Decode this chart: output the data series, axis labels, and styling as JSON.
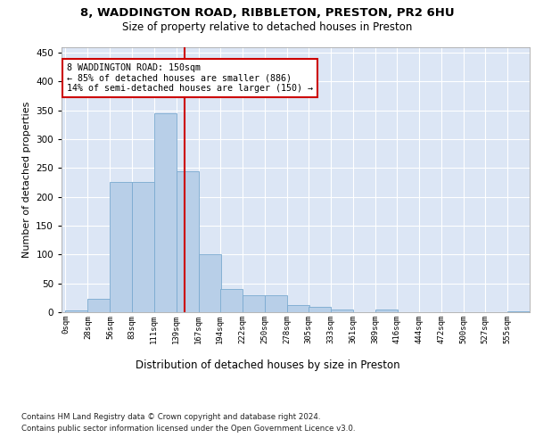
{
  "title1": "8, WADDINGTON ROAD, RIBBLETON, PRESTON, PR2 6HU",
  "title2": "Size of property relative to detached houses in Preston",
  "xlabel": "Distribution of detached houses by size in Preston",
  "ylabel": "Number of detached properties",
  "footnote1": "Contains HM Land Registry data © Crown copyright and database right 2024.",
  "footnote2": "Contains public sector information licensed under the Open Government Licence v3.0.",
  "annotation_line1": "8 WADDINGTON ROAD: 150sqm",
  "annotation_line2": "← 85% of detached houses are smaller (886)",
  "annotation_line3": "14% of semi-detached houses are larger (150) →",
  "bar_color": "#b8cfe8",
  "bar_edge_color": "#7aaad0",
  "ref_line_color": "#cc0000",
  "ref_line_x": 150,
  "annotation_box_color": "#cc0000",
  "categories": [
    0,
    28,
    56,
    83,
    111,
    139,
    167,
    194,
    222,
    250,
    278,
    305,
    333,
    361,
    389,
    416,
    444,
    472,
    500,
    527,
    555
  ],
  "cat_labels": [
    "0sqm",
    "28sqm",
    "56sqm",
    "83sqm",
    "111sqm",
    "139sqm",
    "167sqm",
    "194sqm",
    "222sqm",
    "250sqm",
    "278sqm",
    "305sqm",
    "333sqm",
    "361sqm",
    "389sqm",
    "416sqm",
    "444sqm",
    "472sqm",
    "500sqm",
    "527sqm",
    "555sqm"
  ],
  "values": [
    3,
    23,
    225,
    225,
    345,
    245,
    100,
    40,
    30,
    30,
    13,
    10,
    5,
    0,
    5,
    0,
    0,
    0,
    0,
    0,
    2
  ],
  "bin_width": 28,
  "ylim": [
    0,
    460
  ],
  "yticks": [
    0,
    50,
    100,
    150,
    200,
    250,
    300,
    350,
    400,
    450
  ],
  "plot_bg_color": "#dce6f5"
}
